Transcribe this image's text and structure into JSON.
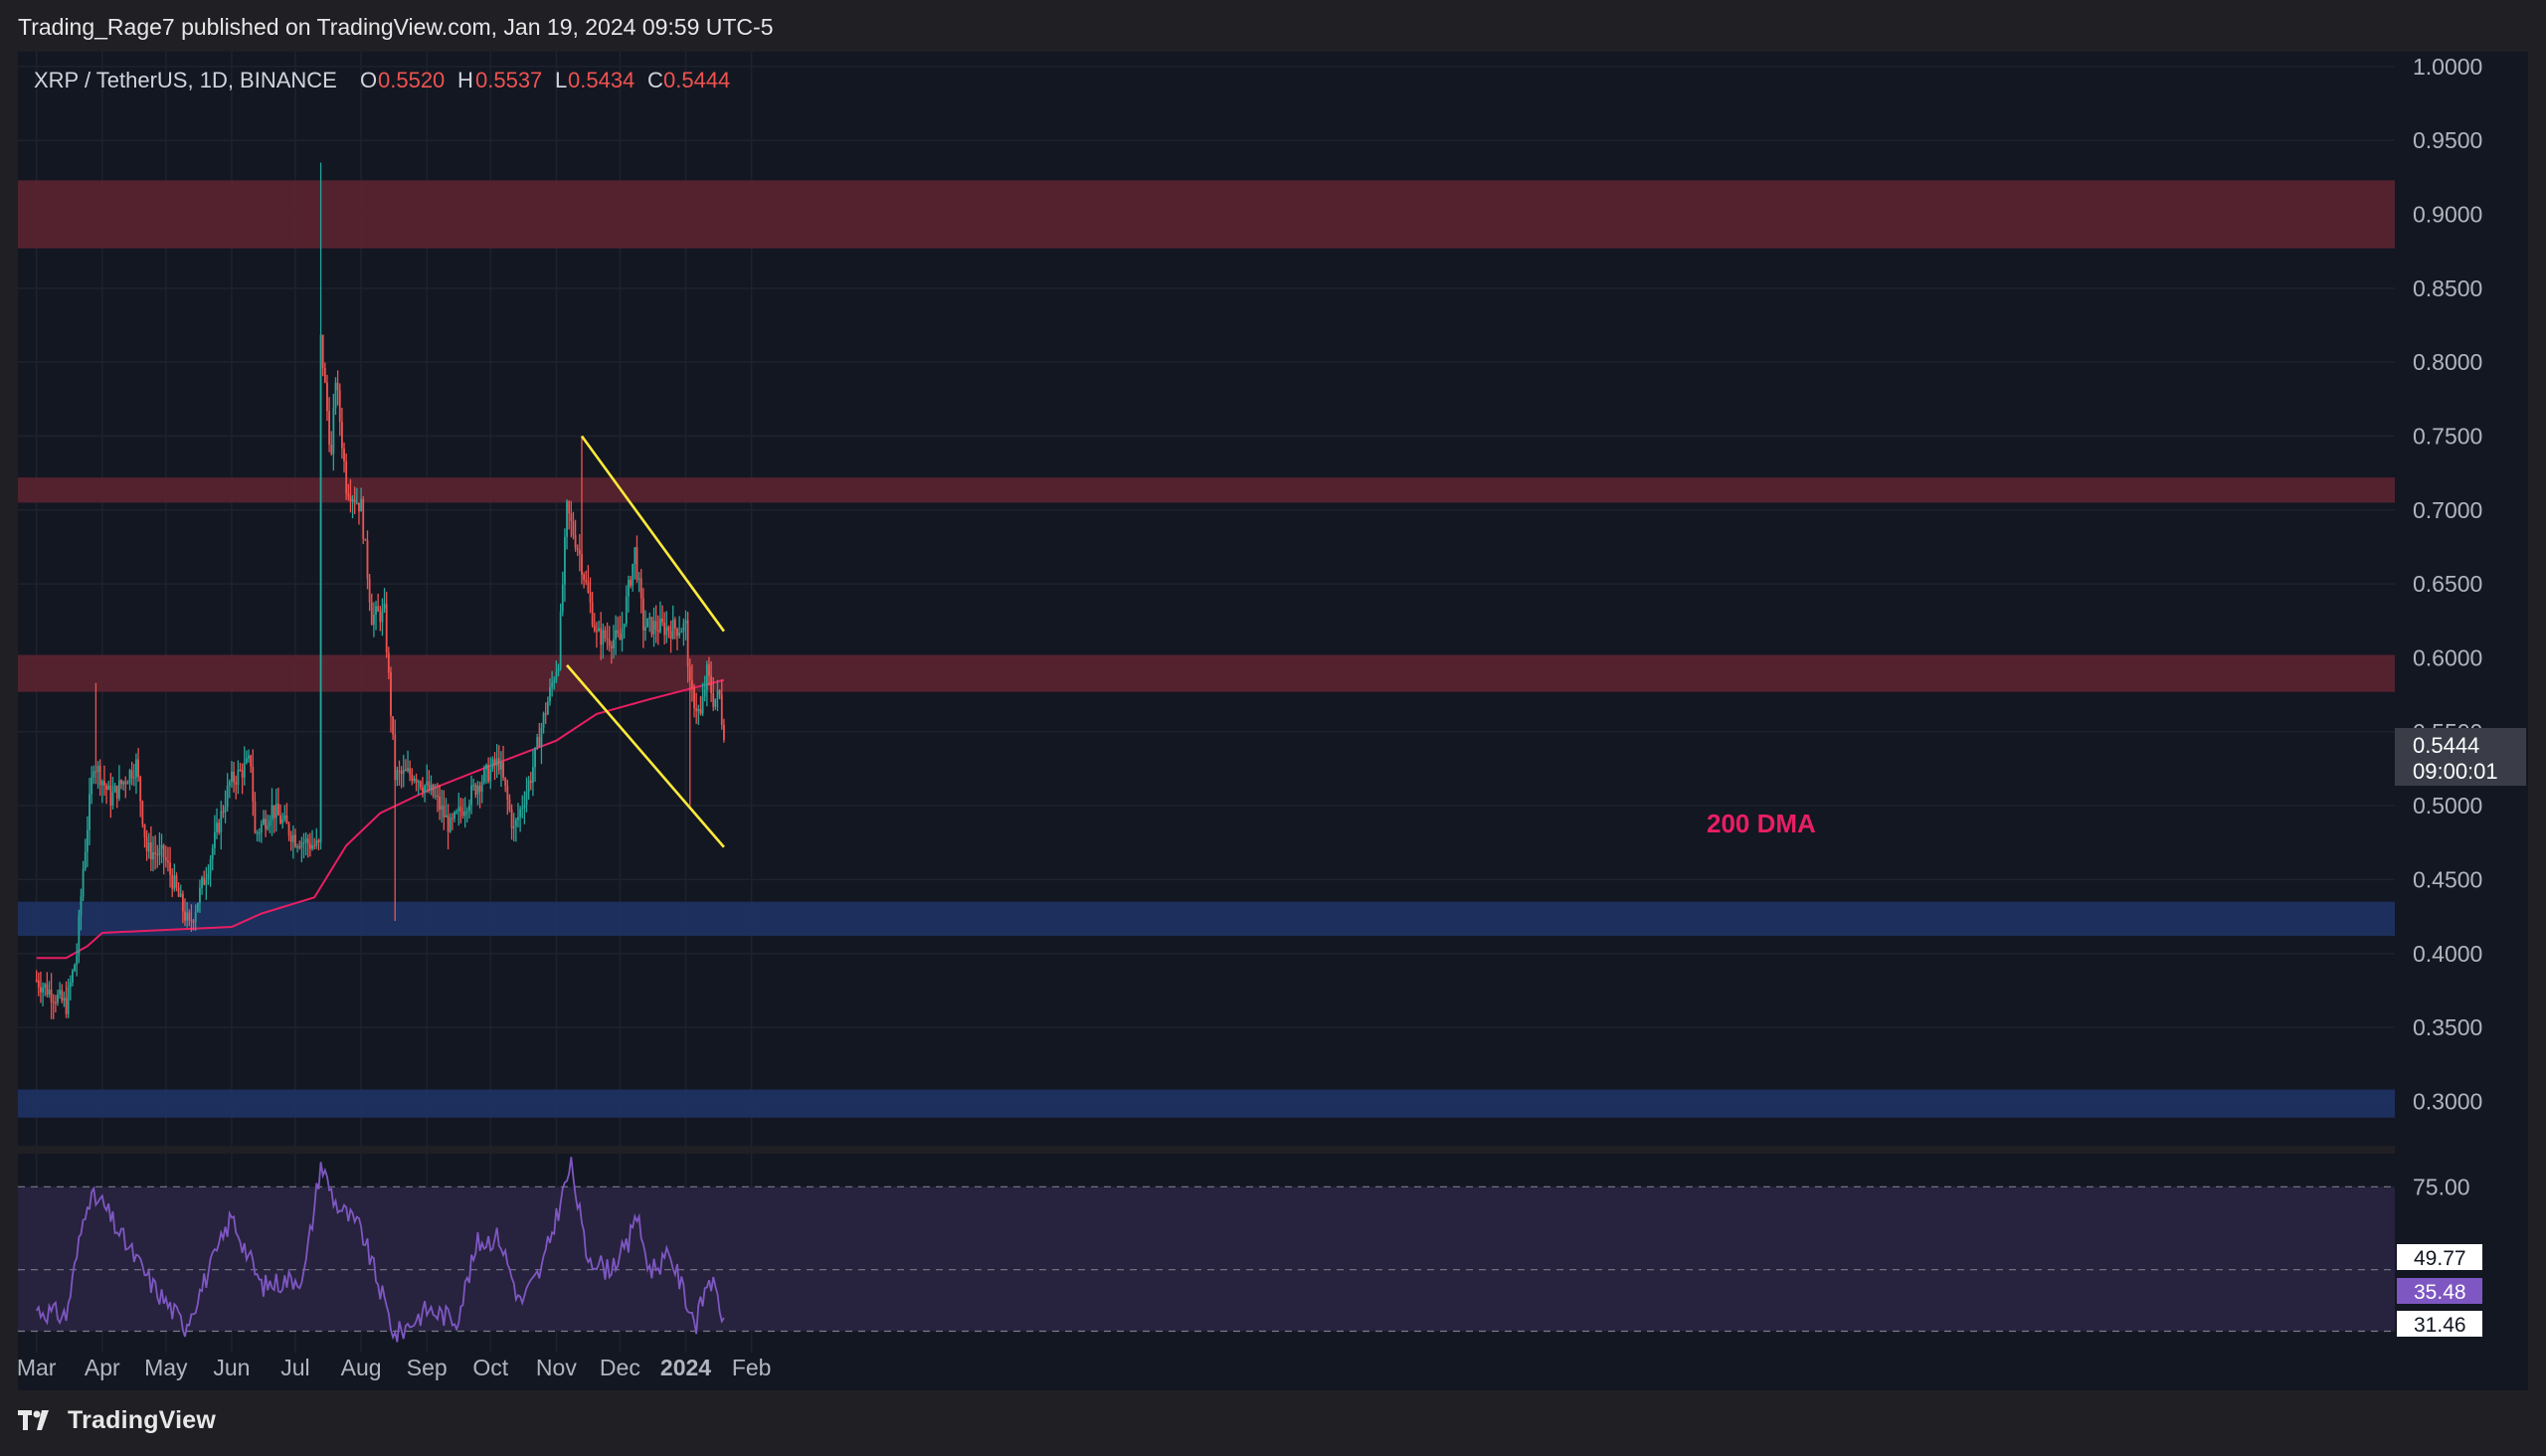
{
  "published_line": "Trading_Rage7 published on TradingView.com, Jan 19, 2024 09:59 UTC-5",
  "footer_brand": "TradingView",
  "colors": {
    "background": "#131722",
    "page": "#1f1f24",
    "up": "#26a69a",
    "down": "#ef5350",
    "resistance_zone": "#5a2430",
    "support_zone": "#1e3263",
    "trendline": "#ffeb3b",
    "dma": "#e91e63",
    "rsi_line": "#7e57c2",
    "rsi_band": "#2a2340"
  },
  "chart_data": [
    {
      "type": "candlestick",
      "symbol_label": "XRP / TetherUS, 1D, BINANCE",
      "ohlc": [
        {
          "label": "O",
          "value": "0.5520"
        },
        {
          "label": "H",
          "value": "0.5537"
        },
        {
          "label": "L",
          "value": "0.5434"
        },
        {
          "label": "C",
          "value": "0.5444"
        }
      ],
      "x_ticks": [
        "Mar",
        "Apr",
        "May",
        "Jun",
        "Jul",
        "Aug",
        "Sep",
        "Oct",
        "Nov",
        "Dec",
        "2024",
        "Feb"
      ],
      "y_ticks": [
        "1.0000",
        "0.9500",
        "0.9000",
        "0.8500",
        "0.8000",
        "0.7500",
        "0.7000",
        "0.6500",
        "0.6000",
        "0.5500",
        "0.5000",
        "0.4500",
        "0.4000",
        "0.3500",
        "0.3000"
      ],
      "ylim": [
        0.27,
        1.01
      ],
      "last_price": {
        "value": "0.5444",
        "countdown": "09:00:01"
      },
      "annotation": "200 DMA",
      "zones": [
        {
          "kind": "resistance",
          "from": 0.877,
          "to": 0.923
        },
        {
          "kind": "resistance",
          "from": 0.705,
          "to": 0.722
        },
        {
          "kind": "resistance",
          "from": 0.577,
          "to": 0.602
        },
        {
          "kind": "support",
          "from": 0.412,
          "to": 0.435
        },
        {
          "kind": "support",
          "from": 0.289,
          "to": 0.308
        }
      ],
      "trendlines": [
        {
          "from": [
            "2023-11-13",
            0.75
          ],
          "to": [
            "2024-01-19",
            0.618
          ]
        },
        {
          "from": [
            "2023-11-06",
            0.595
          ],
          "to": [
            "2024-01-19",
            0.472
          ]
        }
      ],
      "dma200": [
        [
          "2023-03-01",
          0.397
        ],
        [
          "2023-03-15",
          0.397
        ],
        [
          "2023-03-25",
          0.405
        ],
        [
          "2023-04-01",
          0.414
        ],
        [
          "2023-05-01",
          0.416
        ],
        [
          "2023-06-01",
          0.418
        ],
        [
          "2023-06-15",
          0.427
        ],
        [
          "2023-07-10",
          0.438
        ],
        [
          "2023-07-25",
          0.473
        ],
        [
          "2023-08-10",
          0.495
        ],
        [
          "2023-09-01",
          0.51
        ],
        [
          "2023-10-01",
          0.527
        ],
        [
          "2023-11-01",
          0.544
        ],
        [
          "2023-11-20",
          0.562
        ],
        [
          "2023-12-15",
          0.572
        ],
        [
          "2024-01-19",
          0.585
        ]
      ],
      "candles_anchors": [
        [
          "2023-03-01",
          0.382
        ],
        [
          "2023-03-15",
          0.365
        ],
        [
          "2023-03-20",
          0.4
        ],
        [
          "2023-03-23",
          0.458
        ],
        [
          "2023-03-28",
          0.53
        ],
        [
          "2023-04-05",
          0.505
        ],
        [
          "2023-04-17",
          0.528
        ],
        [
          "2023-04-22",
          0.47
        ],
        [
          "2023-04-30",
          0.466
        ],
        [
          "2023-05-12",
          0.418
        ],
        [
          "2023-05-20",
          0.455
        ],
        [
          "2023-05-31",
          0.515
        ],
        [
          "2023-06-10",
          0.53
        ],
        [
          "2023-06-12",
          0.48
        ],
        [
          "2023-06-20",
          0.498
        ],
        [
          "2023-07-01",
          0.478
        ],
        [
          "2023-07-12",
          0.472
        ],
        [
          "2023-07-13",
          0.815
        ],
        [
          "2023-07-18",
          0.735
        ],
        [
          "2023-07-20",
          0.79
        ],
        [
          "2023-07-25",
          0.717
        ],
        [
          "2023-08-01",
          0.702
        ],
        [
          "2023-08-06",
          0.628
        ],
        [
          "2023-08-12",
          0.63
        ],
        [
          "2023-08-17",
          0.52
        ],
        [
          "2023-08-26",
          0.522
        ],
        [
          "2023-09-05",
          0.505
        ],
        [
          "2023-09-12",
          0.485
        ],
        [
          "2023-09-25",
          0.515
        ],
        [
          "2023-10-05",
          0.53
        ],
        [
          "2023-10-12",
          0.483
        ],
        [
          "2023-10-20",
          0.52
        ],
        [
          "2023-10-25",
          0.553
        ],
        [
          "2023-11-02",
          0.6
        ],
        [
          "2023-11-06",
          0.7
        ],
        [
          "2023-11-12",
          0.67
        ],
        [
          "2023-11-20",
          0.615
        ],
        [
          "2023-12-01",
          0.612
        ],
        [
          "2023-12-08",
          0.672
        ],
        [
          "2023-12-12",
          0.622
        ],
        [
          "2023-12-25",
          0.62
        ],
        [
          "2024-01-01",
          0.621
        ],
        [
          "2024-01-03",
          0.578
        ],
        [
          "2024-01-08",
          0.56
        ],
        [
          "2024-01-11",
          0.59
        ],
        [
          "2024-01-14",
          0.572
        ],
        [
          "2024-01-17",
          0.574
        ],
        [
          "2024-01-19",
          0.5444
        ]
      ],
      "spikes": [
        {
          "date": "2023-07-13",
          "high": 0.935
        },
        {
          "date": "2023-08-17",
          "low": 0.422
        },
        {
          "date": "2024-01-03",
          "low": 0.5
        },
        {
          "date": "2023-11-13",
          "high": 0.75
        },
        {
          "date": "2023-03-29",
          "high": 0.583
        }
      ]
    },
    {
      "type": "line",
      "indicator": "RSI",
      "y_ticks": [
        "75.00"
      ],
      "band": [
        31.46,
        75.0
      ],
      "ylim": [
        25,
        85
      ],
      "badges": [
        {
          "value": "49.77"
        },
        {
          "value": "35.48"
        },
        {
          "value": "31.46"
        }
      ],
      "anchors": [
        [
          "2023-03-01",
          38
        ],
        [
          "2023-03-15",
          36
        ],
        [
          "2023-03-25",
          72
        ],
        [
          "2023-04-01",
          70
        ],
        [
          "2023-04-10",
          60
        ],
        [
          "2023-04-25",
          45
        ],
        [
          "2023-05-10",
          33
        ],
        [
          "2023-05-25",
          55
        ],
        [
          "2023-06-01",
          66
        ],
        [
          "2023-06-15",
          45
        ],
        [
          "2023-07-05",
          48
        ],
        [
          "2023-07-13",
          82
        ],
        [
          "2023-07-20",
          70
        ],
        [
          "2023-08-01",
          62
        ],
        [
          "2023-08-17",
          30
        ],
        [
          "2023-09-01",
          38
        ],
        [
          "2023-09-15",
          35
        ],
        [
          "2023-09-25",
          58
        ],
        [
          "2023-10-05",
          60
        ],
        [
          "2023-10-15",
          40
        ],
        [
          "2023-10-25",
          50
        ],
        [
          "2023-11-05",
          75
        ],
        [
          "2023-11-08",
          82
        ],
        [
          "2023-11-15",
          55
        ],
        [
          "2023-11-25",
          50
        ],
        [
          "2023-12-05",
          57
        ],
        [
          "2023-12-08",
          68
        ],
        [
          "2023-12-15",
          50
        ],
        [
          "2023-12-25",
          54
        ],
        [
          "2024-01-03",
          38
        ],
        [
          "2024-01-06",
          34
        ],
        [
          "2024-01-12",
          48
        ],
        [
          "2024-01-19",
          35.48
        ]
      ]
    }
  ]
}
